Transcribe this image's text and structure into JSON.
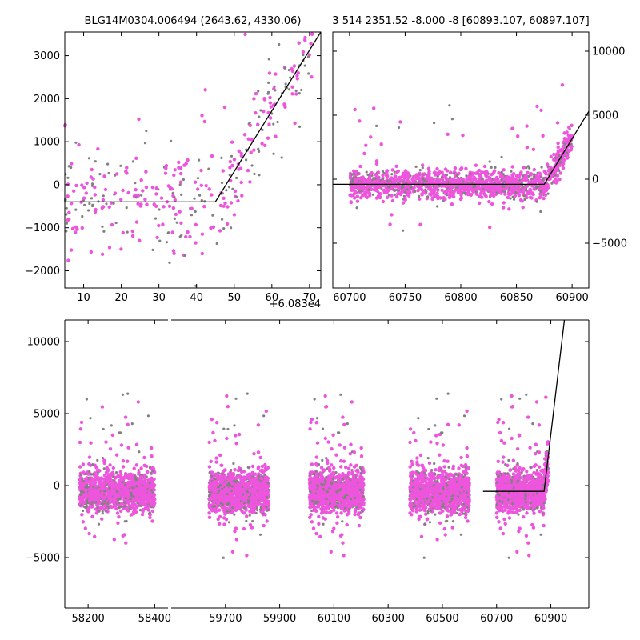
{
  "chart_data": [
    {
      "type": "scatter",
      "title": "BLG14M0304.006494 (2643.62, 4330.06)",
      "xlim": [
        5,
        73
      ],
      "ylim": [
        -2400,
        3550
      ],
      "x_offset_label": "+6.083e4",
      "xticks": [
        10,
        20,
        30,
        40,
        50,
        60,
        70
      ],
      "yticks": [
        -2000,
        -1000,
        0,
        1000,
        2000,
        3000
      ],
      "colors": {
        "gray": "#808080",
        "magenta": "#ee55dd",
        "model": "#000000"
      },
      "model_line": {
        "x": [
          5,
          45,
          73
        ],
        "y": [
          -400,
          -400,
          3550
        ]
      }
    },
    {
      "type": "scatter",
      "title": "3 514 2351.52 -8.000 -8 [60893.107, 60897.107]",
      "xlim": [
        60685,
        60915
      ],
      "ylim": [
        -8500,
        11500
      ],
      "xticks": [
        60700,
        60750,
        60800,
        60850,
        60900
      ],
      "yticks": [
        -5000,
        0,
        5000,
        10000
      ],
      "yaxis_side": "right",
      "colors": {
        "gray": "#808080",
        "magenta": "#ee55dd",
        "model": "#000000"
      },
      "model_line": {
        "x": [
          60685,
          60875,
          60915
        ],
        "y": [
          -400,
          -400,
          5300
        ]
      }
    },
    {
      "type": "scatter",
      "broken_x_axis": true,
      "segments": [
        {
          "xlim": [
            58130,
            58440
          ],
          "xticks": [
            58200,
            58400
          ]
        },
        {
          "xlim": [
            59500,
            61040
          ],
          "xticks": [
            59700,
            59900,
            60100,
            60300,
            60500,
            60700,
            60900
          ]
        }
      ],
      "ylim": [
        -8500,
        11500
      ],
      "yticks": [
        -5000,
        0,
        5000,
        10000
      ],
      "seasons": [
        58175,
        58400,
        59640,
        59860,
        60010,
        60210,
        60380,
        60600,
        60700,
        60890
      ],
      "colors": {
        "gray": "#808080",
        "magenta": "#ee55dd",
        "model": "#000000"
      },
      "model_line": {
        "x": [
          60650,
          60875,
          60950
        ],
        "y": [
          -400,
          -400,
          11500
        ]
      }
    }
  ]
}
